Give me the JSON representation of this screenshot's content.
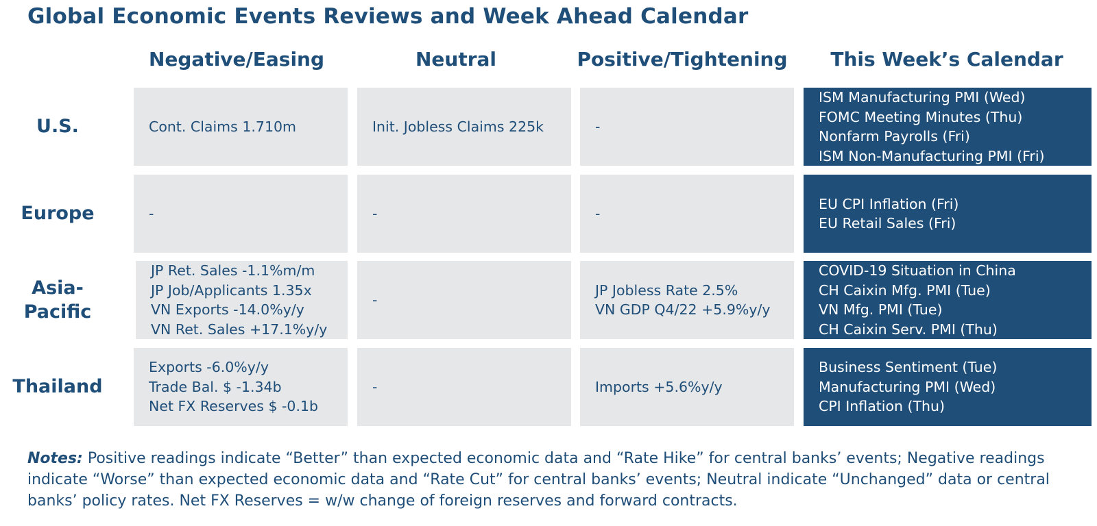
{
  "title": "Global Economic Events Reviews and Week Ahead Calendar",
  "columns": {
    "negative": "Negative/Easing",
    "neutral": "Neutral",
    "positive": "Positive/Tightening",
    "calendar": "This Week’s Calendar"
  },
  "rows": [
    {
      "label_lines": [
        "U.S."
      ],
      "negative": [
        "Cont. Claims 1.710m"
      ],
      "neutral": [
        "Init. Jobless Claims 225k"
      ],
      "positive": [
        "-"
      ],
      "calendar": [
        "ISM Manufacturing PMI (Wed)",
        "FOMC Meeting Minutes (Thu)",
        "Nonfarm Payrolls (Fri)",
        "ISM Non-Manufacturing PMI (Fri)"
      ]
    },
    {
      "label_lines": [
        "Europe"
      ],
      "negative": [
        "-"
      ],
      "neutral": [
        "-"
      ],
      "positive": [
        "-"
      ],
      "calendar": [
        "EU CPI Inflation (Fri)",
        "EU Retail Sales (Fri)"
      ]
    },
    {
      "label_lines": [
        "Asia-",
        "Pacific"
      ],
      "negative": [
        "JP Ret. Sales -1.1%m/m",
        "JP Job/Applicants 1.35x",
        "VN Exports -14.0%y/y",
        "VN Ret. Sales +17.1%y/y"
      ],
      "neutral": [
        "-"
      ],
      "positive": [
        "JP Jobless Rate 2.5%",
        "VN GDP Q4/22 +5.9%y/y"
      ],
      "calendar": [
        "COVID-19 Situation in China",
        "CH Caixin Mfg. PMI (Tue)",
        "VN Mfg. PMI (Tue)",
        "CH Caixin Serv. PMI (Thu)"
      ]
    },
    {
      "label_lines": [
        "Thailand"
      ],
      "negative": [
        "Exports -6.0%y/y",
        "Trade Bal. $ -1.34b",
        "Net FX Reserves $ -0.1b"
      ],
      "neutral": [
        "-"
      ],
      "positive": [
        "Imports +5.6%y/y"
      ],
      "calendar": [
        "Business Sentiment (Tue)",
        "Manufacturing PMI (Wed)",
        "CPI Inflation (Thu)"
      ]
    }
  ],
  "notes": {
    "label": "Notes:",
    "text": " Positive readings indicate “Better” than expected economic data and “Rate Hike” for central banks’ events; Negative readings indicate “Worse” than expected economic data and “Rate Cut” for central banks’ events; Neutral indicate “Unchanged” data or central banks’ policy rates. Net FX Reserves = w/w change of foreign reserves and forward contracts."
  },
  "colors": {
    "navy": "#1f4e79",
    "cell_grey": "#e6e7e9",
    "calendar_text": "#ffffff"
  }
}
